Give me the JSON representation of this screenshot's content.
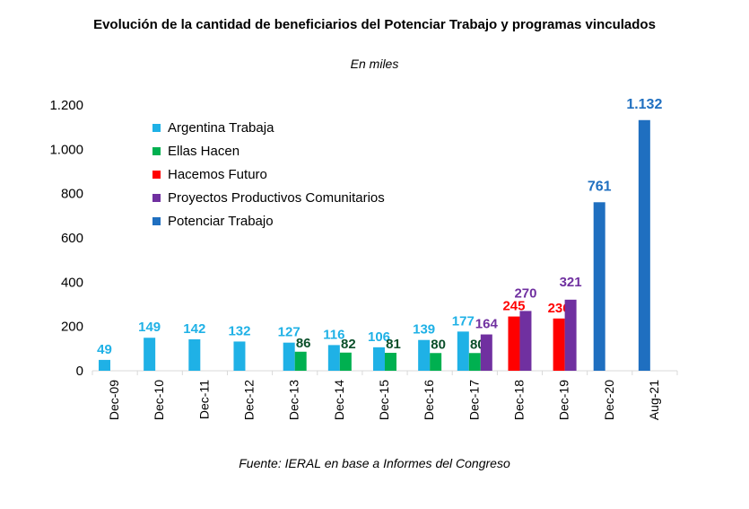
{
  "chart_data": {
    "type": "bar",
    "title": "Evolución de la cantidad de beneficiarios del Potenciar Trabajo y programas vinculados",
    "subtitle": "En miles",
    "source": "Fuente: IERAL en base a Informes del Congreso",
    "categories": [
      "Dec-09",
      "Dec-10",
      "Dec-11",
      "Dec-12",
      "Dec-13",
      "Dec-14",
      "Dec-15",
      "Dec-16",
      "Dec-17",
      "Dec-18",
      "Dec-19",
      "Dec-20",
      "Aug-21"
    ],
    "ylim": [
      0,
      1200
    ],
    "yticks": [
      {
        "value": 0,
        "label": "0"
      },
      {
        "value": 200,
        "label": "200"
      },
      {
        "value": 400,
        "label": "400"
      },
      {
        "value": 600,
        "label": "600"
      },
      {
        "value": 800,
        "label": "800"
      },
      {
        "value": 1000,
        "label": "1.000"
      },
      {
        "value": 1200,
        "label": "1.200"
      }
    ],
    "grid": false,
    "legend_position": "top-left",
    "series": [
      {
        "name": "Argentina Trabaja",
        "color": "#1fb1e6",
        "label_color": "#1fb1e6",
        "values": [
          49,
          149,
          142,
          132,
          127,
          116,
          106,
          139,
          177,
          null,
          null,
          null,
          null
        ],
        "labels": [
          "49",
          "149",
          "142",
          "132",
          "127",
          "116",
          "106",
          "139",
          "177",
          "",
          "",
          "",
          ""
        ]
      },
      {
        "name": "Ellas Hacen",
        "color": "#00b050",
        "label_color": "#0b4f2a",
        "values": [
          null,
          null,
          null,
          null,
          86,
          82,
          81,
          80,
          80,
          null,
          null,
          null,
          null
        ],
        "labels": [
          "",
          "",
          "",
          "",
          "86",
          "82",
          "81",
          "80",
          "80",
          "",
          "",
          "",
          ""
        ]
      },
      {
        "name": "Hacemos Futuro",
        "color": "#ff0000",
        "label_color": "#ff0000",
        "values": [
          null,
          null,
          null,
          null,
          null,
          null,
          null,
          null,
          null,
          245,
          236,
          null,
          null
        ],
        "labels": [
          "",
          "",
          "",
          "",
          "",
          "",
          "",
          "",
          "",
          "245",
          "236",
          "",
          ""
        ]
      },
      {
        "name": "Proyectos Productivos Comunitarios",
        "color": "#7030a0",
        "label_color": "#7030a0",
        "values": [
          null,
          null,
          null,
          null,
          null,
          null,
          null,
          null,
          164,
          270,
          321,
          null,
          null
        ],
        "labels": [
          "",
          "",
          "",
          "",
          "",
          "",
          "",
          "",
          "164",
          "270",
          "321",
          "",
          ""
        ]
      },
      {
        "name": "Potenciar Trabajo",
        "color": "#1f6fc0",
        "label_color": "#1f6fc0",
        "values": [
          null,
          null,
          null,
          null,
          null,
          null,
          null,
          null,
          null,
          null,
          null,
          761,
          1132
        ],
        "labels": [
          "",
          "",
          "",
          "",
          "",
          "",
          "",
          "",
          "",
          "",
          "",
          "761",
          "1.132"
        ]
      }
    ]
  }
}
